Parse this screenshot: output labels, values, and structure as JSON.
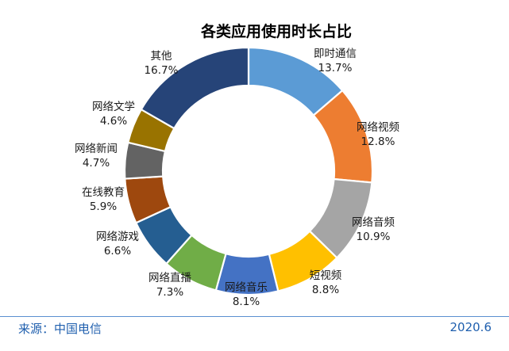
{
  "chart_data": {
    "type": "pie",
    "title": "各类应用使用时长占比",
    "categories": [
      "即时通信",
      "网络视频",
      "网络音频",
      "短视频",
      "网络音乐",
      "网络直播",
      "网络游戏",
      "在线教育",
      "网络新闻",
      "网络文学",
      "其他"
    ],
    "values": [
      13.7,
      12.8,
      10.9,
      8.8,
      8.1,
      7.3,
      6.6,
      5.9,
      4.7,
      4.6,
      16.7
    ],
    "value_labels": [
      "13.7%",
      "12.8%",
      "10.9%",
      "8.8%",
      "8.1%",
      "7.3%",
      "6.6%",
      "5.9%",
      "4.7%",
      "4.6%",
      "16.7%"
    ],
    "colors": [
      "#5b9bd5",
      "#ed7d31",
      "#a5a5a5",
      "#ffc000",
      "#4472c4",
      "#70ad47",
      "#255e91",
      "#9e480e",
      "#636363",
      "#997300",
      "#264478"
    ],
    "donut": true
  },
  "footer": {
    "source": "来源：中国电信",
    "date": "2020.6"
  }
}
